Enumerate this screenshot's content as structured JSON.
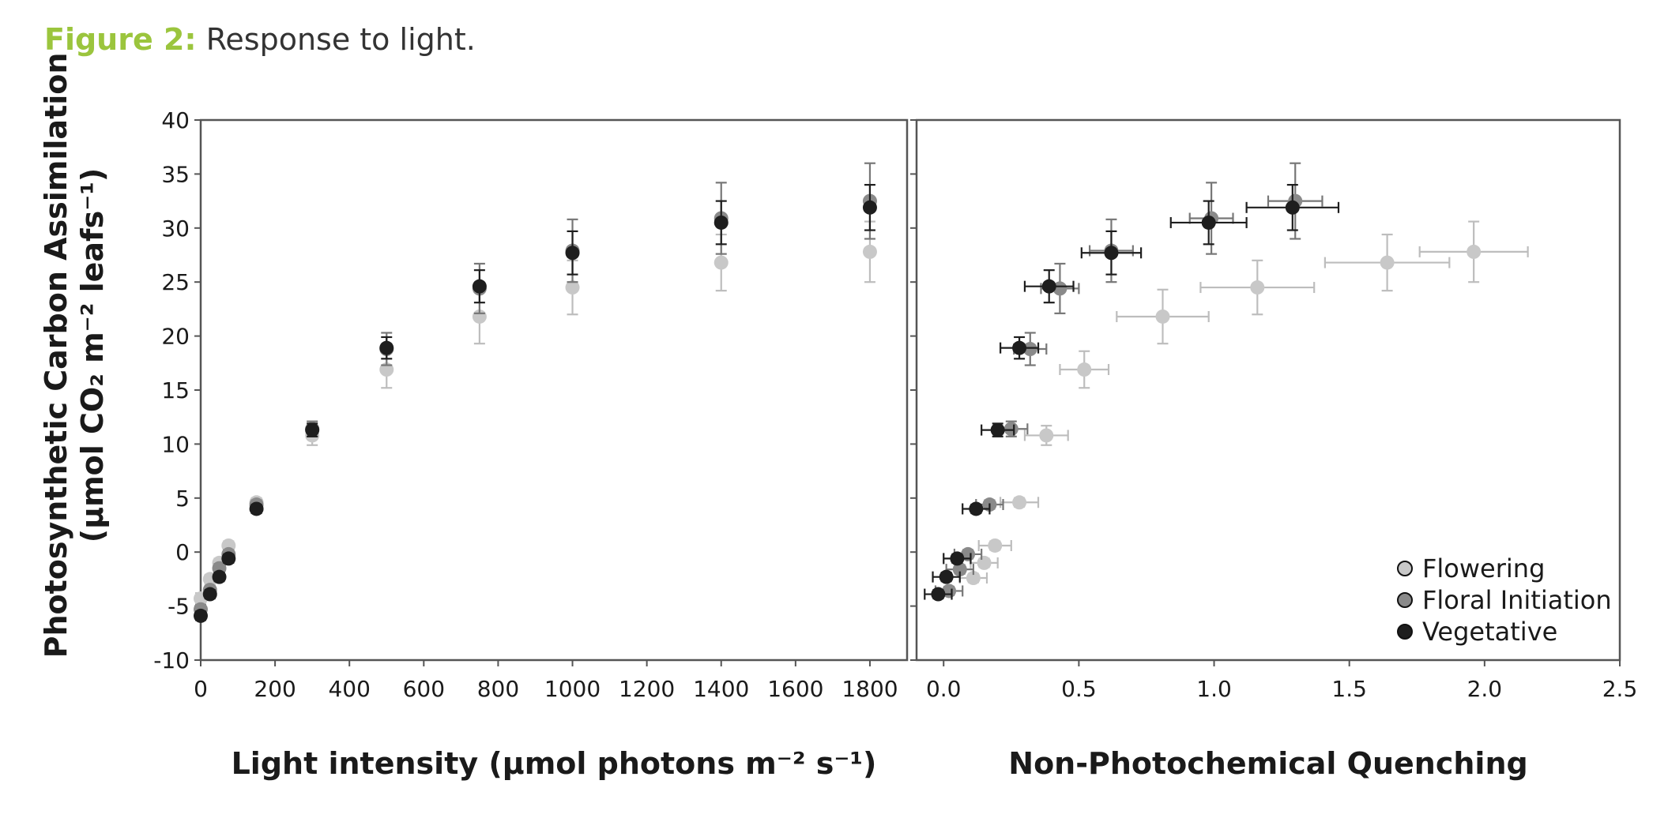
{
  "figure": {
    "label": "Figure 2:",
    "caption": " Response to light."
  },
  "y_axis": {
    "line1": "Photosynthetic Carbon Assimilation",
    "line2": "(µmol CO₂ m⁻² leafs⁻¹)",
    "ticks": [
      40,
      35,
      30,
      25,
      20,
      15,
      10,
      5,
      0,
      -5,
      -10
    ],
    "tick_labels": [
      "40",
      "35",
      "30",
      "25",
      "20",
      "15",
      "10",
      "5",
      "0",
      "-5",
      "-10"
    ]
  },
  "series_styles": [
    {
      "name": "Flowering",
      "fill": "#c8c8c8",
      "bar": "#bdbdbd"
    },
    {
      "name": "Floral Initiation",
      "fill": "#8a8a8a",
      "bar": "#777777"
    },
    {
      "name": "Vegetative",
      "fill": "#1e1e1e",
      "bar": "#1e1e1e"
    }
  ],
  "legend": {
    "placement": "bottom-right of right panel",
    "items": [
      "Flowering",
      "Floral Initiation",
      "Vegetative"
    ]
  },
  "chart_data": [
    {
      "type": "scatter",
      "title": "",
      "xlabel": "Light intensity (µmol photons m⁻² s⁻¹)",
      "ylabel": "Photosynthetic Carbon Assimilation (µmol CO₂ m⁻² leafs⁻¹)",
      "xlim": [
        0,
        1900
      ],
      "ylim": [
        -10,
        40
      ],
      "x_ticks": [
        0,
        200,
        400,
        600,
        800,
        1000,
        1200,
        1400,
        1600,
        1800
      ],
      "x_tick_labels": [
        "0",
        "200",
        "400",
        "600",
        "800",
        "1000",
        "1200",
        "1400",
        "1600",
        "1800"
      ],
      "series": [
        {
          "name": "Flowering",
          "points": [
            {
              "x": 0,
              "y": -4.3,
              "yerr": 0.5
            },
            {
              "x": 25,
              "y": -2.5,
              "yerr": 0.4
            },
            {
              "x": 50,
              "y": -1.0,
              "yerr": 0.4
            },
            {
              "x": 75,
              "y": 0.6,
              "yerr": 0.4
            },
            {
              "x": 150,
              "y": 4.6,
              "yerr": 0.4
            },
            {
              "x": 300,
              "y": 10.8,
              "yerr": 0.9
            },
            {
              "x": 500,
              "y": 16.9,
              "yerr": 1.7
            },
            {
              "x": 750,
              "y": 21.8,
              "yerr": 2.5
            },
            {
              "x": 1000,
              "y": 24.5,
              "yerr": 2.5
            },
            {
              "x": 1400,
              "y": 26.8,
              "yerr": 2.6
            },
            {
              "x": 1800,
              "y": 27.8,
              "yerr": 2.8
            }
          ]
        },
        {
          "name": "Floral Initiation",
          "points": [
            {
              "x": 0,
              "y": -5.3,
              "yerr": 0.4
            },
            {
              "x": 25,
              "y": -3.5,
              "yerr": 0.4
            },
            {
              "x": 50,
              "y": -1.5,
              "yerr": 0.4
            },
            {
              "x": 75,
              "y": -0.2,
              "yerr": 0.4
            },
            {
              "x": 150,
              "y": 4.4,
              "yerr": 0.4
            },
            {
              "x": 300,
              "y": 11.4,
              "yerr": 0.7
            },
            {
              "x": 500,
              "y": 18.8,
              "yerr": 1.5
            },
            {
              "x": 750,
              "y": 24.4,
              "yerr": 2.3
            },
            {
              "x": 1000,
              "y": 27.9,
              "yerr": 2.9
            },
            {
              "x": 1400,
              "y": 30.9,
              "yerr": 3.3
            },
            {
              "x": 1800,
              "y": 32.5,
              "yerr": 3.5
            }
          ]
        },
        {
          "name": "Vegetative",
          "points": [
            {
              "x": 0,
              "y": -5.9,
              "yerr": 0.4
            },
            {
              "x": 25,
              "y": -3.9,
              "yerr": 0.4
            },
            {
              "x": 50,
              "y": -2.3,
              "yerr": 0.4
            },
            {
              "x": 75,
              "y": -0.6,
              "yerr": 0.4
            },
            {
              "x": 150,
              "y": 4.0,
              "yerr": 0.4
            },
            {
              "x": 300,
              "y": 11.3,
              "yerr": 0.6
            },
            {
              "x": 500,
              "y": 18.9,
              "yerr": 1.0
            },
            {
              "x": 750,
              "y": 24.6,
              "yerr": 1.5
            },
            {
              "x": 1000,
              "y": 27.7,
              "yerr": 2.0
            },
            {
              "x": 1400,
              "y": 30.5,
              "yerr": 2.0
            },
            {
              "x": 1800,
              "y": 31.9,
              "yerr": 2.1
            }
          ]
        }
      ]
    },
    {
      "type": "scatter",
      "title": "",
      "xlabel": "Non-Photochemical Quenching",
      "ylabel": "",
      "xlim": [
        -0.1,
        2.5
      ],
      "ylim": [
        -10,
        40
      ],
      "x_ticks": [
        0,
        0.5,
        1.0,
        1.5,
        2.0,
        2.5
      ],
      "x_tick_labels": [
        "0.0",
        "0.5",
        "1.0",
        "1.5",
        "2.0",
        "2.5"
      ],
      "series": [
        {
          "name": "Flowering",
          "points": [
            {
              "x": 0.11,
              "y": -2.4,
              "xerr": 0.05,
              "yerr": 0.4
            },
            {
              "x": 0.15,
              "y": -1.0,
              "xerr": 0.05,
              "yerr": 0.4
            },
            {
              "x": 0.19,
              "y": 0.6,
              "xerr": 0.06,
              "yerr": 0.4
            },
            {
              "x": 0.28,
              "y": 4.6,
              "xerr": 0.07,
              "yerr": 0.4
            },
            {
              "x": 0.38,
              "y": 10.8,
              "xerr": 0.08,
              "yerr": 0.9
            },
            {
              "x": 0.52,
              "y": 16.9,
              "xerr": 0.09,
              "yerr": 1.7
            },
            {
              "x": 0.81,
              "y": 21.8,
              "xerr": 0.17,
              "yerr": 2.5
            },
            {
              "x": 1.16,
              "y": 24.5,
              "xerr": 0.21,
              "yerr": 2.5
            },
            {
              "x": 1.64,
              "y": 26.8,
              "xerr": 0.23,
              "yerr": 2.6
            },
            {
              "x": 1.96,
              "y": 27.8,
              "xerr": 0.2,
              "yerr": 2.8
            }
          ]
        },
        {
          "name": "Floral Initiation",
          "points": [
            {
              "x": 0.02,
              "y": -3.6,
              "xerr": 0.05,
              "yerr": 0.4
            },
            {
              "x": 0.06,
              "y": -1.6,
              "xerr": 0.05,
              "yerr": 0.4
            },
            {
              "x": 0.09,
              "y": -0.2,
              "xerr": 0.05,
              "yerr": 0.4
            },
            {
              "x": 0.17,
              "y": 4.4,
              "xerr": 0.05,
              "yerr": 0.4
            },
            {
              "x": 0.25,
              "y": 11.4,
              "xerr": 0.06,
              "yerr": 0.7
            },
            {
              "x": 0.32,
              "y": 18.8,
              "xerr": 0.06,
              "yerr": 1.5
            },
            {
              "x": 0.43,
              "y": 24.4,
              "xerr": 0.07,
              "yerr": 2.3
            },
            {
              "x": 0.62,
              "y": 27.9,
              "xerr": 0.08,
              "yerr": 2.9
            },
            {
              "x": 0.99,
              "y": 30.9,
              "xerr": 0.08,
              "yerr": 3.3
            },
            {
              "x": 1.3,
              "y": 32.5,
              "xerr": 0.1,
              "yerr": 3.5
            }
          ]
        },
        {
          "name": "Vegetative",
          "points": [
            {
              "x": -0.02,
              "y": -3.9,
              "xerr": 0.05,
              "yerr": 0.4
            },
            {
              "x": 0.01,
              "y": -2.3,
              "xerr": 0.05,
              "yerr": 0.4
            },
            {
              "x": 0.05,
              "y": -0.6,
              "xerr": 0.05,
              "yerr": 0.4
            },
            {
              "x": 0.12,
              "y": 4.0,
              "xerr": 0.05,
              "yerr": 0.4
            },
            {
              "x": 0.2,
              "y": 11.3,
              "xerr": 0.06,
              "yerr": 0.6
            },
            {
              "x": 0.28,
              "y": 18.9,
              "xerr": 0.07,
              "yerr": 1.0
            },
            {
              "x": 0.39,
              "y": 24.6,
              "xerr": 0.09,
              "yerr": 1.5
            },
            {
              "x": 0.62,
              "y": 27.7,
              "xerr": 0.11,
              "yerr": 2.0
            },
            {
              "x": 0.98,
              "y": 30.5,
              "xerr": 0.14,
              "yerr": 2.0
            },
            {
              "x": 1.29,
              "y": 31.9,
              "xerr": 0.17,
              "yerr": 2.1
            }
          ]
        }
      ]
    }
  ]
}
